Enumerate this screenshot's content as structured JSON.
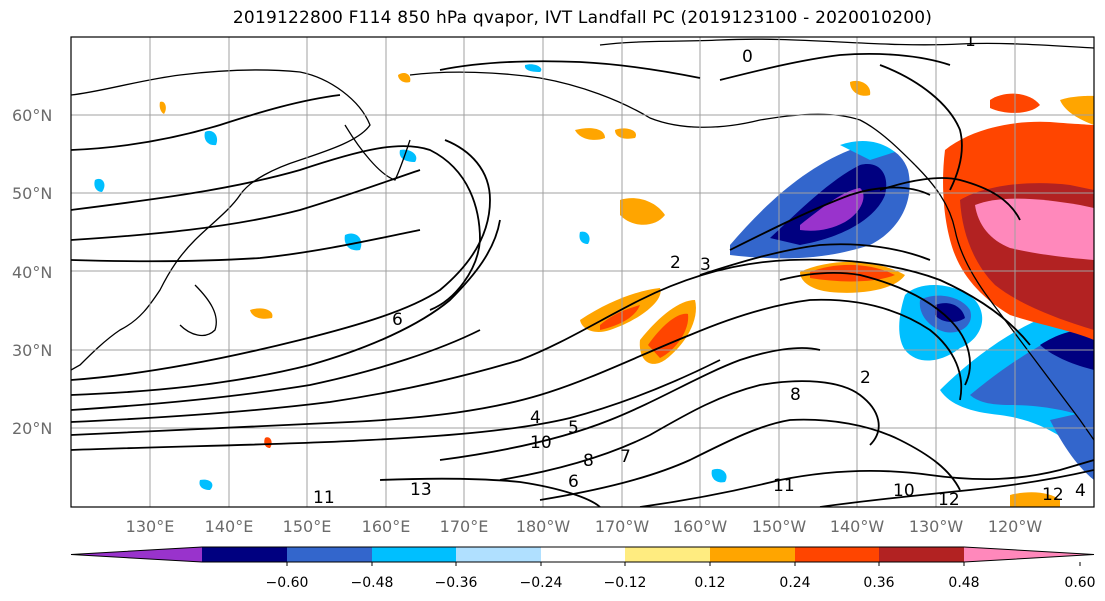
{
  "title": "2019122800 F114 850 hPa qvapor, IVT Landfall PC (2019123100 - 2020010200)",
  "lat_labels": [
    "60°N",
    "50°N",
    "40°N",
    "30°N",
    "20°N"
  ],
  "lon_labels": [
    "130°E",
    "140°E",
    "150°E",
    "160°E",
    "170°E",
    "180°W",
    "170°W",
    "160°W",
    "150°W",
    "140°W",
    "130°W",
    "120°W"
  ],
  "colorbar": {
    "colors": [
      "#9933cc",
      "#000080",
      "#3366cc",
      "#00bfff",
      "#b0e0ff",
      "#ffffff",
      "#ffec80",
      "#ffa500",
      "#ff4500",
      "#b22222",
      "#ff88bb"
    ],
    "tick_labels": [
      "−0.60",
      "−0.48",
      "−0.36",
      "−0.24",
      "−0.12",
      "0.12",
      "0.24",
      "0.36",
      "0.48",
      "0.60"
    ]
  },
  "contour_labels": [
    "0",
    "1",
    "2",
    "3",
    "4",
    "5",
    "6",
    "8",
    "10",
    "11",
    "12",
    "13",
    "7",
    "2",
    "8",
    "10",
    "11",
    "12",
    "4",
    "6"
  ],
  "colors": {
    "grid": "#a0a0a0",
    "frame": "#000000",
    "contour": "#000000"
  }
}
